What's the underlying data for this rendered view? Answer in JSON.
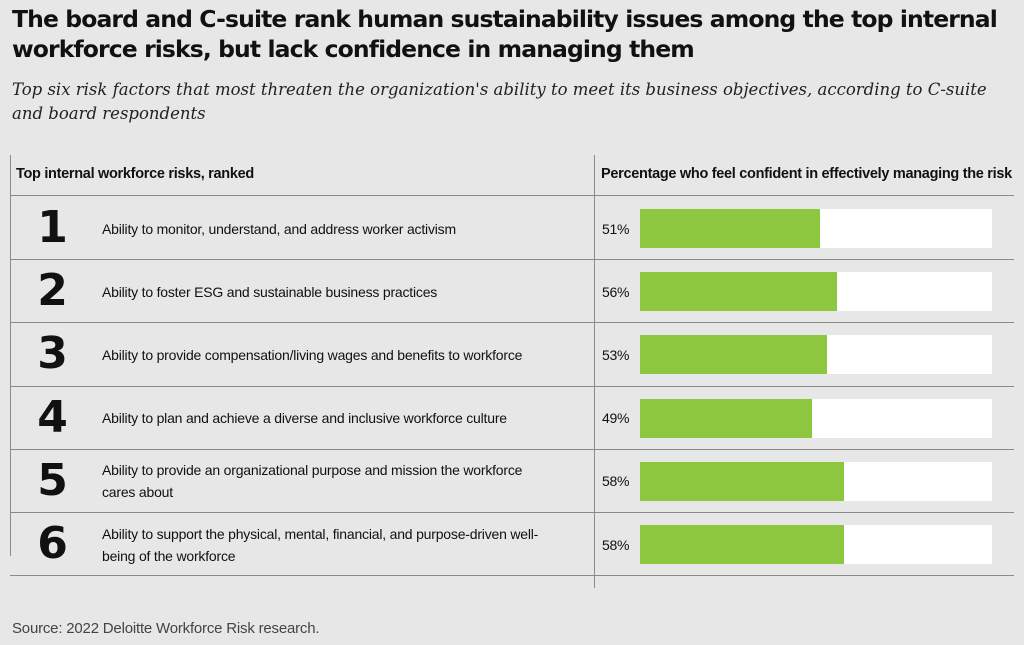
{
  "title": "The board and C-suite rank human sustainability issues among the top internal workforce risks, but lack confidence in managing them",
  "subtitle": "Top six risk factors that most threaten the organization's ability to meet its business objectives, according to C-suite and board respondents",
  "colors": {
    "bar": "#8dc63f",
    "track": "#ffffff",
    "background": "#e6e7e6"
  },
  "chart_data": {
    "type": "bar",
    "orientation": "horizontal",
    "columns": [
      "Top internal workforce risks, ranked",
      "Percentage who feel confident in effectively managing the risk"
    ],
    "ranks": [
      "1",
      "2",
      "3",
      "4",
      "5",
      "6"
    ],
    "categories": [
      "Ability to monitor, understand, and address worker activism",
      "Ability to foster ESG and sustainable business practices",
      "Ability to provide compensation/living wages and benefits to workforce",
      "Ability to plan and achieve a diverse and inclusive workforce culture",
      "Ability to provide an organizational purpose and mission the workforce cares about",
      "Ability to support the physical, mental, financial, and purpose-driven well-being of the workforce"
    ],
    "values": [
      51,
      56,
      53,
      49,
      58,
      58
    ],
    "value_labels": [
      "51%",
      "56%",
      "53%",
      "49%",
      "58%",
      "58%"
    ],
    "xlim": [
      0,
      100
    ],
    "grid": false
  },
  "source": "Source: 2022 Deloitte Workforce Risk research."
}
